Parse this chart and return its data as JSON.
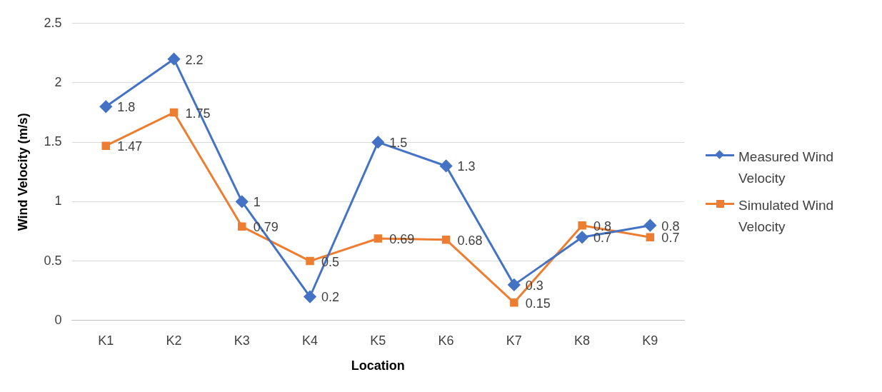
{
  "chart_data": {
    "type": "line",
    "xlabel": "Location",
    "ylabel": "Wind Velocity (m/s)",
    "categories": [
      "K1",
      "K2",
      "K3",
      "K4",
      "K5",
      "K6",
      "K7",
      "K8",
      "K9"
    ],
    "series": [
      {
        "name": "Measured Wind Velocity",
        "color": "#4472c4",
        "marker": "diamond",
        "values": [
          1.8,
          2.2,
          1,
          0.2,
          1.5,
          1.3,
          0.3,
          0.7,
          0.8
        ]
      },
      {
        "name": "Simulated Wind Velocity",
        "color": "#ed7d31",
        "marker": "square",
        "values": [
          1.47,
          1.75,
          0.79,
          0.5,
          0.69,
          0.68,
          0.15,
          0.8,
          0.7
        ]
      }
    ],
    "ylim": [
      0,
      2.5
    ],
    "yticks": [
      0,
      0.5,
      1,
      1.5,
      2,
      2.5
    ],
    "grid": "y",
    "legend": "right",
    "data_labels": true,
    "line_style": "solid"
  }
}
